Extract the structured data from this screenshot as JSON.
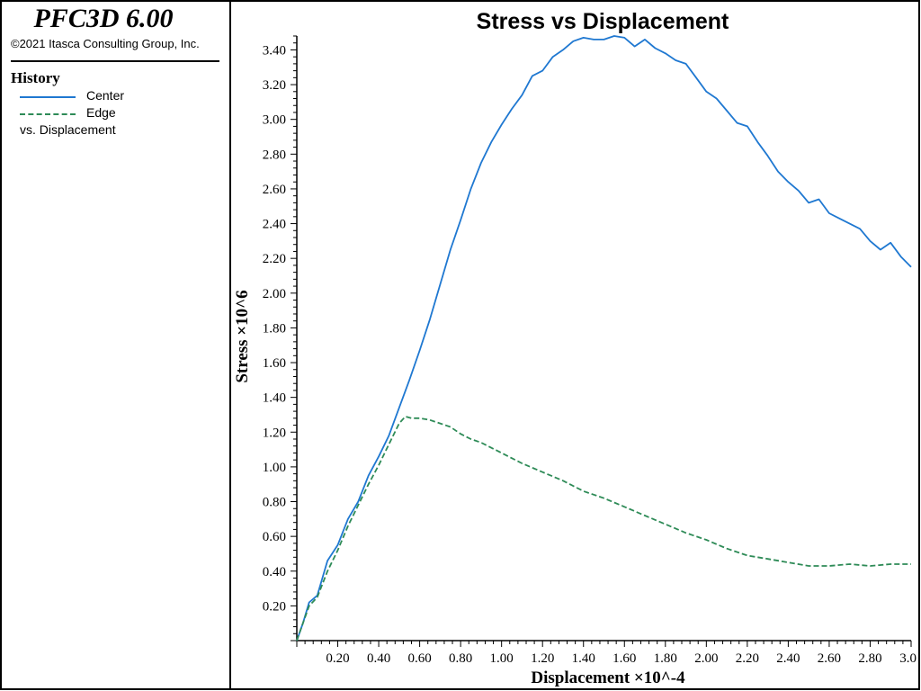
{
  "app": {
    "title": "PFC3D 6.00",
    "copyright": "©2021 Itasca Consulting Group, Inc."
  },
  "legend": {
    "heading": "History",
    "items": [
      {
        "label": "Center",
        "color": "#1f78d1",
        "style": "solid"
      },
      {
        "label": "Edge",
        "color": "#2e8b57",
        "style": "dashed"
      }
    ],
    "vs_label": "vs. Displacement"
  },
  "chart_data": {
    "type": "line",
    "title": "Stress vs Displacement",
    "xlabel": "Displacement ×10^-4",
    "ylabel": "Stress ×10^6",
    "xlim": [
      0.0,
      3.0
    ],
    "ylim": [
      0.0,
      3.48
    ],
    "xticks": [
      "0.20",
      "0.40",
      "0.60",
      "0.80",
      "1.00",
      "1.20",
      "1.40",
      "1.60",
      "1.80",
      "2.00",
      "2.20",
      "2.40",
      "2.60",
      "2.80",
      "3.0"
    ],
    "yticks": [
      "0.20",
      "0.40",
      "0.60",
      "0.80",
      "1.00",
      "1.20",
      "1.40",
      "1.60",
      "1.80",
      "2.00",
      "2.20",
      "2.40",
      "2.60",
      "2.80",
      "3.00",
      "3.20",
      "3.40"
    ],
    "grid": false,
    "legend_position": "left-panel",
    "series": [
      {
        "name": "Center",
        "color": "#1f78d1",
        "style": "solid",
        "points": [
          [
            0.0,
            0.0
          ],
          [
            0.03,
            0.1
          ],
          [
            0.06,
            0.22
          ],
          [
            0.1,
            0.26
          ],
          [
            0.15,
            0.46
          ],
          [
            0.2,
            0.55
          ],
          [
            0.25,
            0.7
          ],
          [
            0.3,
            0.8
          ],
          [
            0.35,
            0.95
          ],
          [
            0.4,
            1.06
          ],
          [
            0.45,
            1.18
          ],
          [
            0.5,
            1.34
          ],
          [
            0.55,
            1.5
          ],
          [
            0.6,
            1.67
          ],
          [
            0.65,
            1.85
          ],
          [
            0.7,
            2.05
          ],
          [
            0.75,
            2.25
          ],
          [
            0.8,
            2.42
          ],
          [
            0.85,
            2.6
          ],
          [
            0.9,
            2.75
          ],
          [
            0.95,
            2.87
          ],
          [
            1.0,
            2.97
          ],
          [
            1.05,
            3.06
          ],
          [
            1.1,
            3.14
          ],
          [
            1.15,
            3.25
          ],
          [
            1.2,
            3.28
          ],
          [
            1.25,
            3.36
          ],
          [
            1.3,
            3.4
          ],
          [
            1.35,
            3.45
          ],
          [
            1.4,
            3.47
          ],
          [
            1.45,
            3.46
          ],
          [
            1.5,
            3.46
          ],
          [
            1.55,
            3.48
          ],
          [
            1.6,
            3.47
          ],
          [
            1.65,
            3.42
          ],
          [
            1.7,
            3.46
          ],
          [
            1.75,
            3.41
          ],
          [
            1.8,
            3.38
          ],
          [
            1.85,
            3.34
          ],
          [
            1.9,
            3.32
          ],
          [
            1.95,
            3.24
          ],
          [
            2.0,
            3.16
          ],
          [
            2.05,
            3.12
          ],
          [
            2.1,
            3.05
          ],
          [
            2.15,
            2.98
          ],
          [
            2.2,
            2.96
          ],
          [
            2.25,
            2.87
          ],
          [
            2.3,
            2.79
          ],
          [
            2.35,
            2.7
          ],
          [
            2.4,
            2.64
          ],
          [
            2.45,
            2.59
          ],
          [
            2.5,
            2.52
          ],
          [
            2.55,
            2.54
          ],
          [
            2.6,
            2.46
          ],
          [
            2.65,
            2.43
          ],
          [
            2.7,
            2.4
          ],
          [
            2.75,
            2.37
          ],
          [
            2.8,
            2.3
          ],
          [
            2.85,
            2.25
          ],
          [
            2.9,
            2.29
          ],
          [
            2.95,
            2.21
          ],
          [
            3.0,
            2.15
          ]
        ]
      },
      {
        "name": "Edge",
        "color": "#2e8b57",
        "style": "dashed",
        "points": [
          [
            0.0,
            0.0
          ],
          [
            0.03,
            0.1
          ],
          [
            0.06,
            0.2
          ],
          [
            0.1,
            0.25
          ],
          [
            0.15,
            0.4
          ],
          [
            0.2,
            0.52
          ],
          [
            0.25,
            0.66
          ],
          [
            0.3,
            0.78
          ],
          [
            0.35,
            0.9
          ],
          [
            0.4,
            1.01
          ],
          [
            0.45,
            1.13
          ],
          [
            0.5,
            1.25
          ],
          [
            0.53,
            1.29
          ],
          [
            0.56,
            1.28
          ],
          [
            0.6,
            1.28
          ],
          [
            0.65,
            1.27
          ],
          [
            0.7,
            1.25
          ],
          [
            0.75,
            1.23
          ],
          [
            0.8,
            1.19
          ],
          [
            0.85,
            1.16
          ],
          [
            0.9,
            1.14
          ],
          [
            0.95,
            1.11
          ],
          [
            1.0,
            1.08
          ],
          [
            1.05,
            1.05
          ],
          [
            1.1,
            1.02
          ],
          [
            1.2,
            0.97
          ],
          [
            1.3,
            0.92
          ],
          [
            1.4,
            0.86
          ],
          [
            1.5,
            0.82
          ],
          [
            1.6,
            0.77
          ],
          [
            1.7,
            0.72
          ],
          [
            1.8,
            0.67
          ],
          [
            1.9,
            0.62
          ],
          [
            2.0,
            0.58
          ],
          [
            2.1,
            0.53
          ],
          [
            2.2,
            0.49
          ],
          [
            2.3,
            0.47
          ],
          [
            2.4,
            0.45
          ],
          [
            2.5,
            0.43
          ],
          [
            2.6,
            0.43
          ],
          [
            2.7,
            0.44
          ],
          [
            2.8,
            0.43
          ],
          [
            2.9,
            0.44
          ],
          [
            3.0,
            0.44
          ]
        ]
      }
    ]
  }
}
